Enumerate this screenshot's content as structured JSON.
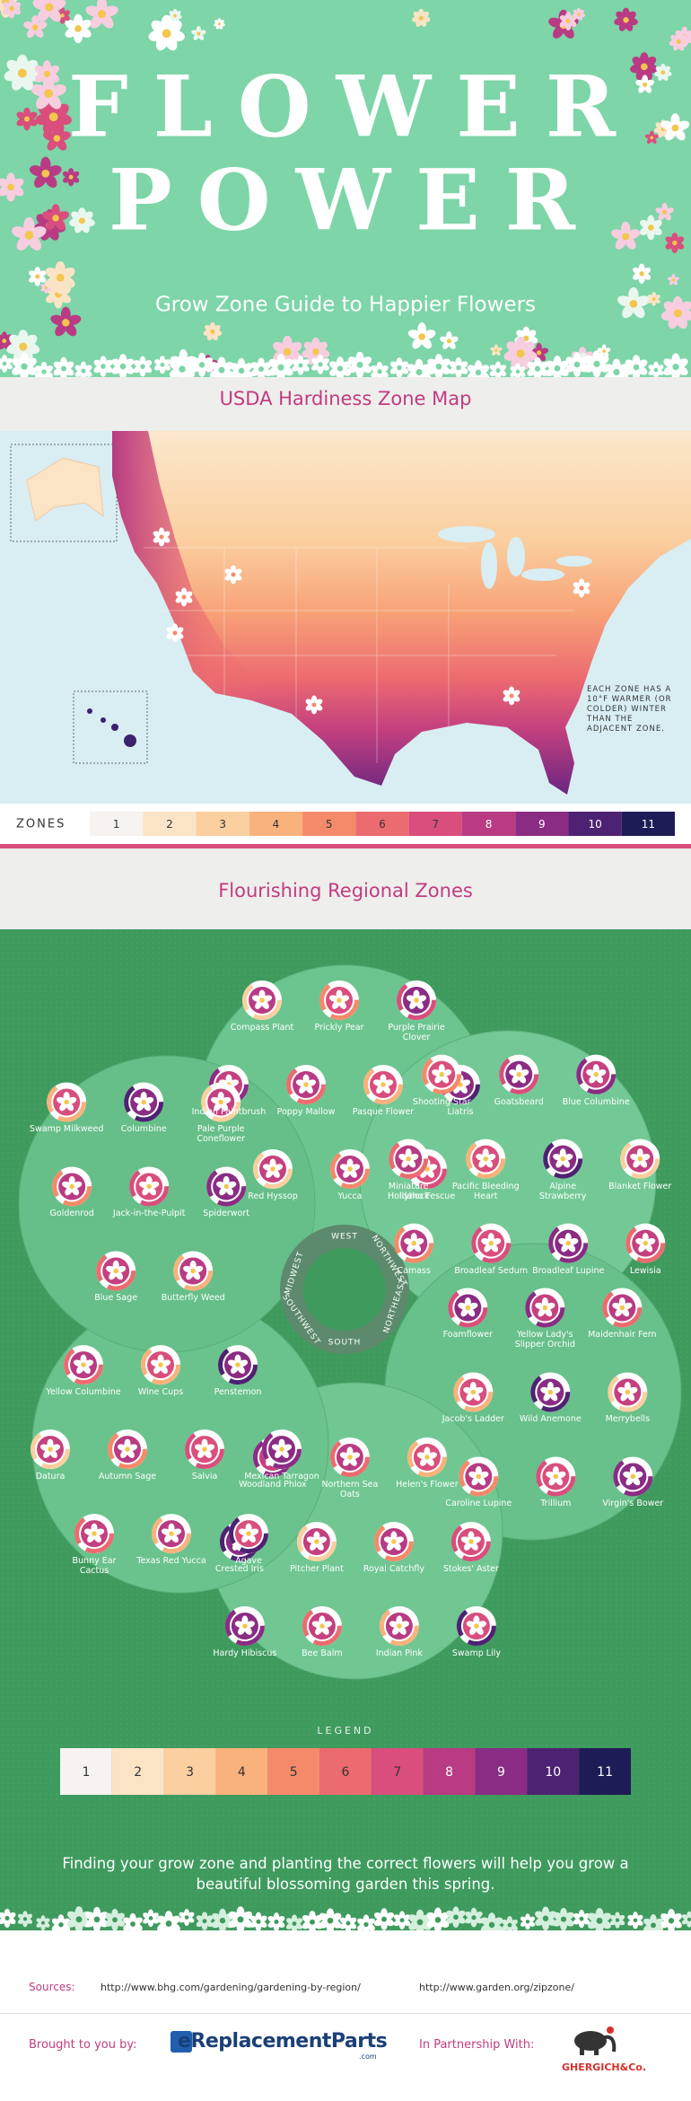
{
  "header": {
    "title_line1": "FLOWER",
    "title_line2": "POWER",
    "subtitle": "Grow Zone Guide to Happier Flowers"
  },
  "map": {
    "title": "USDA Hardiness Zone Map",
    "note": "EACH ZONE HAS A 10°F WARMER (OR COLDER) WINTER THAN THE ADJACENT ZONE.",
    "zones_label": "ZONES"
  },
  "zones": [
    {
      "label": "1",
      "color": "#f6f3f0"
    },
    {
      "label": "2",
      "color": "#fbe4c6"
    },
    {
      "label": "3",
      "color": "#fbcfa0"
    },
    {
      "label": "4",
      "color": "#f9b27c"
    },
    {
      "label": "5",
      "color": "#f58a6a"
    },
    {
      "label": "6",
      "color": "#ec6b70"
    },
    {
      "label": "7",
      "color": "#d94e7c"
    },
    {
      "label": "8",
      "color": "#b83b84"
    },
    {
      "label": "9",
      "color": "#8a2c84"
    },
    {
      "label": "10",
      "color": "#4e2272"
    },
    {
      "label": "11",
      "color": "#1e1c56"
    }
  ],
  "regional": {
    "title": "Flourishing Regional Zones",
    "regions": [
      {
        "name": "WEST",
        "flowers": [
          "Compass Plant",
          "Prickly Pear",
          "Purple Prairie Clover",
          "Indian Paintbrush",
          "Poppy Mallow",
          "Pasque Flower",
          "Liatris",
          "Red Hyssop",
          "Yucca",
          "Idaho Fescue"
        ]
      },
      {
        "name": "NORTHWEST",
        "flowers": [
          "Shooting Star",
          "Goatsbeard",
          "Blue Columbine",
          "Miniature Hollyhock",
          "Pacific Bleeding Heart",
          "Alpine Strawberry",
          "Blanket Flower",
          "Camass",
          "Broadleaf Sedum",
          "Broadleaf Lupine",
          "Lewisia"
        ]
      },
      {
        "name": "NORTHEAST",
        "flowers": [
          "Foamflower",
          "Yellow Lady's Slipper Orchid",
          "Maidenhair Fern",
          "Jacob's Ladder",
          "Wild Anemone",
          "Merrybells",
          "Caroline Lupine",
          "Trillium",
          "Virgin's Bower"
        ]
      },
      {
        "name": "SOUTH",
        "flowers": [
          "Woodland Phlox",
          "Northern Sea Oats",
          "Helen's Flower",
          "Crested Iris",
          "Pitcher Plant",
          "Royal Catchfly",
          "Stokes' Aster",
          "Hardy Hibiscus",
          "Bee Balm",
          "Indian Pink",
          "Swamp Lily"
        ]
      },
      {
        "name": "SOUTHWEST",
        "flowers": [
          "Yellow Columbine",
          "Wine Cups",
          "Penstemon",
          "Datura",
          "Autumn Sage",
          "Salvia",
          "Mexican Tarragon",
          "Bunny Ear Cactus",
          "Texas Red Yucca",
          "Agave"
        ]
      },
      {
        "name": "MIDWEST",
        "flowers": [
          "Swamp Milkweed",
          "Columbine",
          "Pale Purple Coneflower",
          "Goldenrod",
          "Jack-in-the-Pulpit",
          "Spiderwort",
          "Blue Sage",
          "Butterfly Weed"
        ]
      }
    ]
  },
  "legend": {
    "title": "LEGEND"
  },
  "footer": {
    "message": "Finding your grow zone and planting the correct flowers will help you grow a beautiful blossoming garden this spring.",
    "sources_label": "Sources:",
    "sources": [
      "http://www.bhg.com/gardening/gardening-by-region/",
      "http://www.garden.org/zipzone/"
    ],
    "brought_label": "Brought to you by:",
    "brand": "eReplacementParts",
    "brand_suffix": ".com",
    "partner_label": "In Partnership With:",
    "partner": "GHERGICH&Co."
  }
}
